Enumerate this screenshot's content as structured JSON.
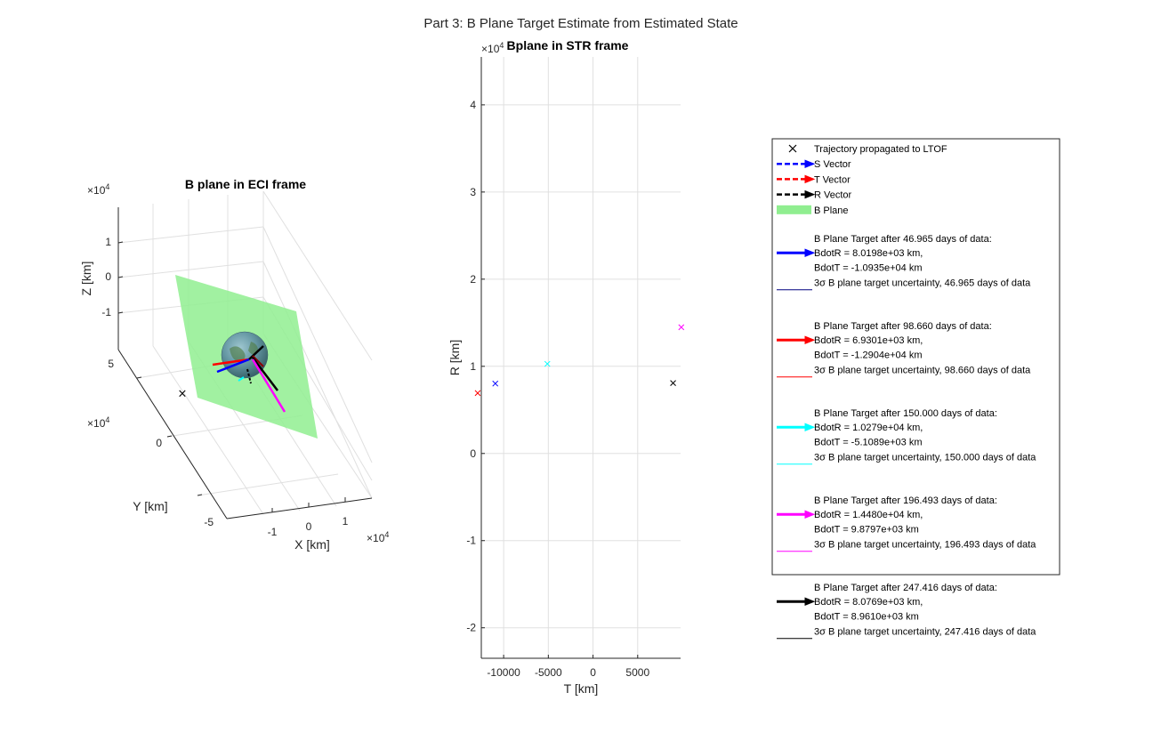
{
  "figure": {
    "suptitle": "Part 3: B Plane Target Estimate from Estimated State"
  },
  "chart_data": [
    {
      "type": "scatter",
      "title": "B plane in ECI frame",
      "projection": "3d",
      "xlabel": "X [km]",
      "ylabel": "Y [km]",
      "zlabel": "Z [km]",
      "x_ticks": [
        "-1",
        "0",
        "1"
      ],
      "y_ticks": [
        "-5",
        "0",
        "5"
      ],
      "z_ticks": [
        "-1",
        "0",
        "1"
      ],
      "x_exponent": "10",
      "x_exponent_power": "4",
      "y_exponent": "10",
      "y_exponent_power": "4",
      "z_exponent": "10",
      "z_exponent_power": "4",
      "grid": true,
      "elements": [
        "Earth sphere",
        "B plane (translucent green)",
        "S/T/R vectors",
        "B plane target vectors",
        "trajectory marker"
      ]
    },
    {
      "type": "scatter",
      "title": "Bplane in STR frame",
      "xlabel": "T [km]",
      "ylabel": "R [km]",
      "xlim": [
        -12500,
        9800
      ],
      "ylim": [
        -23500,
        45500
      ],
      "x_ticks": [
        -10000,
        -5000,
        0,
        5000
      ],
      "x_tick_labels": [
        "-10000",
        "-5000",
        "0",
        "5000"
      ],
      "y_ticks": [
        -20000,
        -10000,
        0,
        10000,
        20000,
        30000,
        40000
      ],
      "y_tick_labels": [
        "-2",
        "-1",
        "0",
        "1",
        "2",
        "3",
        "4"
      ],
      "y_exponent": "10",
      "y_exponent_power": "4",
      "grid": true,
      "series": [
        {
          "color": "#0000ff",
          "points": [
            [
              -10935,
              8019.8
            ]
          ]
        },
        {
          "color": "#ff0000",
          "points": [
            [
              -12904,
              6930.1
            ]
          ]
        },
        {
          "color": "#00ffff",
          "points": [
            [
              -5108.9,
              10279
            ]
          ]
        },
        {
          "color": "#ff00ff",
          "points": [
            [
              9879.7,
              14480
            ]
          ]
        },
        {
          "color": "#000000",
          "points": [
            [
              8961.0,
              8076.9
            ]
          ]
        }
      ],
      "marker": "x"
    }
  ],
  "legend": {
    "placement": "right",
    "entries": [
      {
        "kind": "marker",
        "color": "#000000",
        "lines": [
          "Trajectory propagated to LTOF"
        ]
      },
      {
        "kind": "dasharrow",
        "color": "#0000ff",
        "lines": [
          "S Vector"
        ]
      },
      {
        "kind": "dasharrow",
        "color": "#ff0000",
        "lines": [
          "T Vector"
        ]
      },
      {
        "kind": "dasharrow",
        "color": "#000000",
        "lines": [
          "R Vector"
        ]
      },
      {
        "kind": "patch",
        "color": "#90ee90",
        "lines": [
          "B Plane"
        ]
      },
      {
        "kind": "arrow",
        "color": "#0000ff",
        "lines": [
          "B Plane Target after 46.965 days of data:",
          "BdotR = 8.0198e+03 km,",
          "BdotT = -1.0935e+04 km"
        ]
      },
      {
        "kind": "line",
        "color": "#000080",
        "sigma": "σ",
        "lines": [
          "3",
          " B plane target uncertainty, 46.965 days of data"
        ]
      },
      {
        "kind": "arrow",
        "color": "#ff0000",
        "lines": [
          "B Plane Target after 98.660 days of data:",
          "BdotR = 6.9301e+03 km,",
          "BdotT = -1.2904e+04 km"
        ]
      },
      {
        "kind": "line",
        "color": "#ff0000",
        "sigma": "σ",
        "lines": [
          "3",
          " B plane target uncertainty, 98.660 days of data"
        ]
      },
      {
        "kind": "arrow",
        "color": "#00ffff",
        "lines": [
          "B Plane Target after 150.000 days of data:",
          "BdotR = 1.0279e+04 km,",
          "BdotT = -5.1089e+03 km"
        ]
      },
      {
        "kind": "line",
        "color": "#00ffff",
        "sigma": "σ",
        "lines": [
          "3",
          " B plane target uncertainty, 150.000 days of data"
        ]
      },
      {
        "kind": "arrow",
        "color": "#ff00ff",
        "lines": [
          "B Plane Target after 196.493 days of data:",
          "BdotR = 1.4480e+04 km,",
          "BdotT = 9.8797e+03 km"
        ]
      },
      {
        "kind": "line",
        "color": "#ff00ff",
        "sigma": "σ",
        "lines": [
          "3",
          " B plane target uncertainty, 196.493 days of data"
        ]
      },
      {
        "kind": "arrow",
        "color": "#000000",
        "lines": [
          "B Plane Target after 247.416 days of data:",
          "BdotR = 8.0769e+03 km,",
          "BdotT = 8.9610e+03 km"
        ]
      },
      {
        "kind": "line",
        "color": "#000000",
        "sigma": "σ",
        "lines": [
          "3",
          " B plane target uncertainty, 247.416 days of data"
        ]
      }
    ]
  }
}
